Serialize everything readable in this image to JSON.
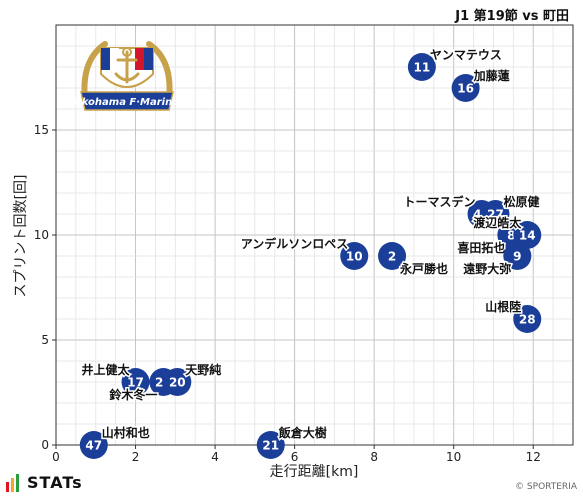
{
  "title": "J1 第19節 vs 町田",
  "chart_data": {
    "type": "scatter",
    "xlabel": "走行距離[km]",
    "ylabel": "スプリント回数[回]",
    "xlim": [
      0,
      13
    ],
    "ylim": [
      0,
      20
    ],
    "xticks": [
      0,
      2,
      4,
      6,
      8,
      10,
      12
    ],
    "yticks": [
      0,
      5,
      10,
      15
    ],
    "grid": true,
    "marker_color": "#1b3e99",
    "points": [
      {
        "number": "11",
        "name": "ヤンマテウス",
        "x": 9.2,
        "y": 18,
        "label_pos": "above-right"
      },
      {
        "number": "16",
        "name": "加藤蓮",
        "x": 10.3,
        "y": 17,
        "label_pos": "above-right"
      },
      {
        "number": "44",
        "name": "トーマスデン",
        "x": 10.7,
        "y": 11,
        "label_pos": "above-left"
      },
      {
        "number": "27",
        "name": "松原健",
        "x": 11.05,
        "y": 11,
        "label_pos": "above-right"
      },
      {
        "number": "8",
        "name": "喜田拓也",
        "x": 11.45,
        "y": 10,
        "label_pos": "below-left"
      },
      {
        "number": "14",
        "name": "渡辺皓太",
        "x": 11.85,
        "y": 10,
        "label_pos": "above-left"
      },
      {
        "number": "9",
        "name": "遠野大弥",
        "x": 11.6,
        "y": 9,
        "label_pos": "below-left"
      },
      {
        "number": "10",
        "name": "アンデルソンロペス",
        "x": 7.5,
        "y": 9,
        "label_pos": "above-left"
      },
      {
        "number": "2",
        "name": "永戸勝也",
        "x": 8.45,
        "y": 9,
        "label_pos": "below-right"
      },
      {
        "number": "28",
        "name": "山根陸",
        "x": 11.85,
        "y": 6,
        "label_pos": "above-left"
      },
      {
        "number": "17",
        "name": "井上健太",
        "x": 2.0,
        "y": 3,
        "label_pos": "above-left"
      },
      {
        "number": "25",
        "name": "鈴木冬一",
        "x": 2.7,
        "y": 3,
        "label_pos": "below-left"
      },
      {
        "number": "20",
        "name": "天野純",
        "x": 3.05,
        "y": 3,
        "label_pos": "above-right"
      },
      {
        "number": "47",
        "name": "山村和也",
        "x": 0.95,
        "y": 0,
        "label_pos": "above-right"
      },
      {
        "number": "21",
        "name": "飯倉大樹",
        "x": 5.4,
        "y": 0,
        "label_pos": "above-right"
      }
    ]
  },
  "logo": {
    "text": "Yokohama F·Marinos",
    "colors": {
      "navy": "#1b3e99",
      "red": "#d3162c",
      "gold": "#c8a24a",
      "white": "#ffffff"
    }
  },
  "brand": {
    "name": "STATs",
    "bar_colors": [
      "#e3151f",
      "#f5a623",
      "#2a9d3c"
    ]
  },
  "credit": "© SPORTERIA"
}
